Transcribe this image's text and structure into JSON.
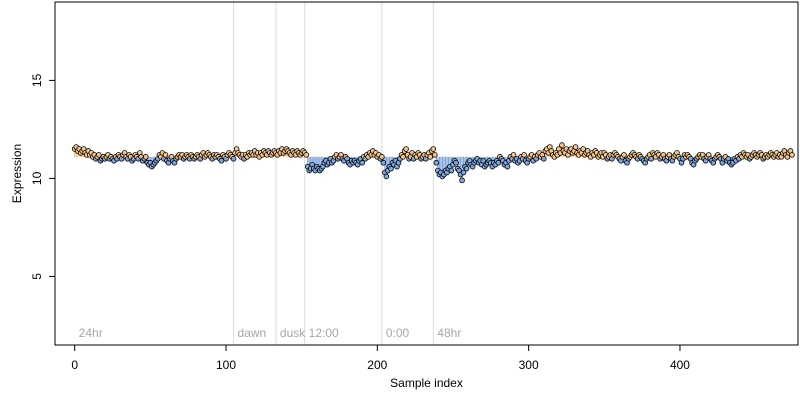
{
  "chart_data": {
    "type": "scatter",
    "xlabel": "Sample index",
    "ylabel": "Expression",
    "xlim": [
      -13,
      478
    ],
    "ylim": [
      1.5,
      19.0
    ],
    "xticks": [
      0,
      100,
      200,
      300,
      400
    ],
    "yticks": [
      5,
      10,
      15
    ],
    "grid": false,
    "baseline": 11.1,
    "colors": {
      "above": "#f5c48a",
      "below": "#7fa7de",
      "outline": "#000000",
      "vline": "#dcdcdc",
      "annotation": "#a6a6a6"
    },
    "annotations": [
      {
        "x": 0,
        "label": "24hr"
      },
      {
        "x": 105,
        "label": "dawn"
      },
      {
        "x": 133,
        "label": "dusk"
      },
      {
        "x": 152,
        "label": "12:00"
      },
      {
        "x": 203,
        "label": "0:00"
      },
      {
        "x": 237,
        "label": "48hr"
      }
    ],
    "vlines": [
      105,
      133,
      152,
      203,
      237
    ],
    "y": [
      11.5,
      11.6,
      11.4,
      11.5,
      11.3,
      11.4,
      11.5,
      11.3,
      11.2,
      11.4,
      11.2,
      11.3,
      11.1,
      11.2,
      11.0,
      11.1,
      11.2,
      10.9,
      11.0,
      11.1,
      11.0,
      11.1,
      11.2,
      11.0,
      11.1,
      11.0,
      10.9,
      11.1,
      11.0,
      11.2,
      11.1,
      11.0,
      11.2,
      11.3,
      11.1,
      11.0,
      11.2,
      11.1,
      10.9,
      11.0,
      11.2,
      11.1,
      11.0,
      11.3,
      11.1,
      10.9,
      11.0,
      11.1,
      10.8,
      10.7,
      10.8,
      10.6,
      10.7,
      10.8,
      10.9,
      11.0,
      11.2,
      11.1,
      11.3,
      11.0,
      11.2,
      10.9,
      10.8,
      11.0,
      11.1,
      10.9,
      10.8,
      11.0,
      11.1,
      11.2,
      11.1,
      11.2,
      11.0,
      11.1,
      11.2,
      11.1,
      11.0,
      11.2,
      11.1,
      11.0,
      11.1,
      11.2,
      11.1,
      11.0,
      11.2,
      11.3,
      11.1,
      11.2,
      11.3,
      11.2,
      11.1,
      11.0,
      11.2,
      11.1,
      11.2,
      11.1,
      11.0,
      10.9,
      11.2,
      11.1,
      11.0,
      11.2,
      11.3,
      11.2,
      11.1,
      11.0,
      11.3,
      11.5,
      11.3,
      11.2,
      11.1,
      11.2,
      11.0,
      11.2,
      11.1,
      11.3,
      11.2,
      11.3,
      11.2,
      11.4,
      11.2,
      11.3,
      11.1,
      11.3,
      11.2,
      11.4,
      11.3,
      11.2,
      11.4,
      11.3,
      11.2,
      11.3,
      11.4,
      11.3,
      11.2,
      11.4,
      11.3,
      11.5,
      11.3,
      11.4,
      11.5,
      11.4,
      11.3,
      11.2,
      11.4,
      11.3,
      11.2,
      11.4,
      11.3,
      11.2,
      11.3,
      11.4,
      11.3,
      11.2,
      10.6,
      10.4,
      10.5,
      10.7,
      10.5,
      10.4,
      10.6,
      10.5,
      10.4,
      10.5,
      10.6,
      10.8,
      10.9,
      10.7,
      10.8,
      11.0,
      10.8,
      10.9,
      11.1,
      11.2,
      11.0,
      11.1,
      11.2,
      11.0,
      10.9,
      11.1,
      11.0,
      10.8,
      10.7,
      10.9,
      10.8,
      10.9,
      10.8,
      10.7,
      10.9,
      11.0,
      10.8,
      11.1,
      11.0,
      11.2,
      11.1,
      11.3,
      11.2,
      11.4,
      11.2,
      11.3,
      11.1,
      11.2,
      11.0,
      11.1,
      10.8,
      10.3,
      10.1,
      10.4,
      10.6,
      10.5,
      10.8,
      10.7,
      10.9,
      10.6,
      10.8,
      11.0,
      11.2,
      11.1,
      11.4,
      11.5,
      11.2,
      11.0,
      11.1,
      11.3,
      11.0,
      11.2,
      11.1,
      11.3,
      11.2,
      11.0,
      11.1,
      11.2,
      11.0,
      11.2,
      11.3,
      11.1,
      11.4,
      11.5,
      11.2,
      10.8,
      10.4,
      10.2,
      10.3,
      10.1,
      10.2,
      10.4,
      10.3,
      10.5,
      10.6,
      10.4,
      10.7,
      10.9,
      10.8,
      10.5,
      10.4,
      10.2,
      9.9,
      10.3,
      10.6,
      10.5,
      10.8,
      10.9,
      10.7,
      10.6,
      10.8,
      10.9,
      11.0,
      10.8,
      10.9,
      10.7,
      10.9,
      10.6,
      10.7,
      10.8,
      10.9,
      10.8,
      10.6,
      10.8,
      10.7,
      10.9,
      10.8,
      11.1,
      11.0,
      10.9,
      10.7,
      10.8,
      10.6,
      10.9,
      11.1,
      11.0,
      11.2,
      10.9,
      11.0,
      10.8,
      10.9,
      11.1,
      11.0,
      11.2,
      10.9,
      10.8,
      11.0,
      11.1,
      11.2,
      10.9,
      11.1,
      11.0,
      11.2,
      11.3,
      11.1,
      11.2,
      11.0,
      11.4,
      11.5,
      11.3,
      11.6,
      11.4,
      11.2,
      11.1,
      11.3,
      11.2,
      11.5,
      11.3,
      11.7,
      11.4,
      11.3,
      11.5,
      11.2,
      11.4,
      11.5,
      11.3,
      11.4,
      11.6,
      11.3,
      11.2,
      11.4,
      11.3,
      11.5,
      11.2,
      11.3,
      11.4,
      11.2,
      11.1,
      11.3,
      11.2,
      11.4,
      11.3,
      11.1,
      11.2,
      11.3,
      11.1,
      11.3,
      11.2,
      11.0,
      11.1,
      11.2,
      11.0,
      11.2,
      11.3,
      11.2,
      11.1,
      11.0,
      10.9,
      11.1,
      11.2,
      10.9,
      10.8,
      11.0,
      11.1,
      11.2,
      11.3,
      11.2,
      11.1,
      11.0,
      11.2,
      11.1,
      11.0,
      10.9,
      10.8,
      11.0,
      11.1,
      11.2,
      11.0,
      11.3,
      11.2,
      11.1,
      11.3,
      11.2,
      11.0,
      11.1,
      11.2,
      11.0,
      10.9,
      11.1,
      11.2,
      11.0,
      10.9,
      11.1,
      11.2,
      11.3,
      11.1,
      11.0,
      10.8,
      11.0,
      11.2,
      11.1,
      11.2,
      11.1,
      11.0,
      10.8,
      10.7,
      10.9,
      11.0,
      11.1,
      11.2,
      11.1,
      11.2,
      11.0,
      10.9,
      11.1,
      11.2,
      11.0,
      10.9,
      10.8,
      11.0,
      11.1,
      11.2,
      11.1,
      11.0,
      10.8,
      11.0,
      11.1,
      10.9,
      11.0,
      10.8,
      10.7,
      10.8,
      11.0,
      10.9,
      11.1,
      11.0,
      11.2,
      11.1,
      11.3,
      11.2,
      11.1,
      11.2,
      11.0,
      11.1,
      11.2,
      11.3,
      11.2,
      11.1,
      11.2,
      11.3,
      11.2,
      11.0,
      11.1,
      11.2,
      11.1,
      11.2,
      11.3,
      11.2,
      11.1,
      11.2,
      11.3,
      11.1,
      11.2,
      11.1,
      11.3,
      11.4,
      11.2,
      11.1,
      11.3,
      11.4,
      11.2
    ]
  }
}
